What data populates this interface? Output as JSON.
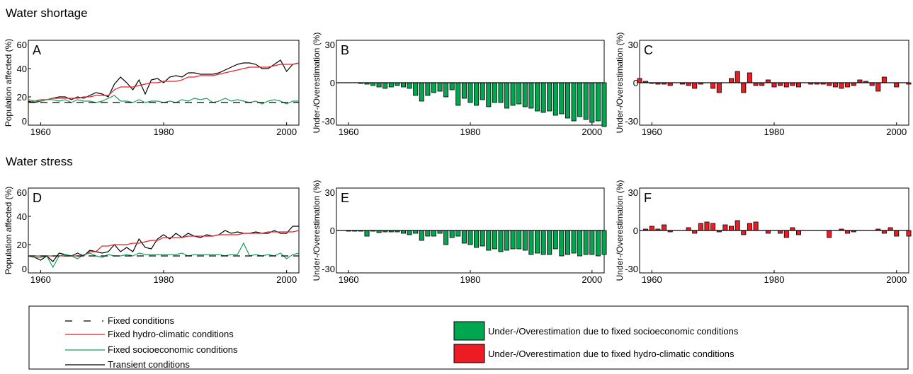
{
  "sections": [
    {
      "title": "Water shortage"
    },
    {
      "title": "Water stress"
    }
  ],
  "colors": {
    "fixed_conditions": "#000000",
    "fixed_hydro": "#e8202a",
    "fixed_socio": "#16a05a",
    "transient": "#000000",
    "bar_socio": "#00a650",
    "bar_hydro": "#ed1c24"
  },
  "legend": {
    "fixed_conditions": "Fixed conditions",
    "fixed_hydro": "Fixed hydro-climatic conditions",
    "fixed_socio": "Fixed socioeconomic conditions",
    "transient": "Transient conditions",
    "bar_socio": "Under-/Overestimation due to fixed socioeconomic conditions",
    "bar_hydro": "Under-/Overestimation due to fixed hydro-climatic conditions"
  },
  "chart_data": [
    {
      "type": "line",
      "panel": "A",
      "ylabel": "Population affected (%)",
      "xlim": [
        1958,
        2002
      ],
      "ylim": [
        0,
        60
      ],
      "xticks": [
        1960,
        1980,
        2000
      ],
      "yticks": [
        0,
        20,
        40,
        60
      ],
      "x": [
        1958,
        1959,
        1960,
        1961,
        1962,
        1963,
        1964,
        1965,
        1966,
        1967,
        1968,
        1969,
        1970,
        1971,
        1972,
        1973,
        1974,
        1975,
        1976,
        1977,
        1978,
        1979,
        1980,
        1981,
        1982,
        1983,
        1984,
        1985,
        1986,
        1987,
        1988,
        1989,
        1990,
        1991,
        1992,
        1993,
        1994,
        1995,
        1996,
        1997,
        1998,
        1999,
        2000,
        2001,
        2002
      ],
      "series": [
        {
          "name": "Transient conditions",
          "key": "transient",
          "dash": "",
          "values": [
            17,
            16,
            17,
            18,
            19,
            20,
            20,
            18,
            20,
            19,
            21,
            23,
            22,
            20,
            29,
            34,
            30,
            25,
            32,
            22,
            32,
            33,
            30,
            34,
            35,
            34,
            37,
            37,
            36,
            36,
            36,
            37,
            39,
            41,
            43,
            44,
            44,
            43,
            40,
            40,
            43,
            46,
            38,
            43,
            44
          ]
        },
        {
          "name": "Fixed hydro-climatic conditions",
          "key": "fixed_hydro",
          "dash": "",
          "values": [
            16,
            17,
            18,
            18,
            19,
            19,
            19,
            19,
            19,
            20,
            20,
            21,
            21,
            21,
            25,
            27,
            27,
            27,
            28,
            29,
            30,
            30,
            31,
            31,
            31,
            32,
            34,
            34,
            35,
            35,
            35,
            36,
            37,
            38,
            39,
            40,
            41,
            41,
            41,
            41,
            42,
            43,
            43,
            43,
            44
          ]
        },
        {
          "name": "Fixed socioeconomic conditions",
          "key": "fixed_socio",
          "dash": "",
          "values": [
            18,
            17,
            17,
            18,
            18,
            17,
            18,
            16,
            18,
            17,
            17,
            16,
            17,
            19,
            21,
            17,
            17,
            16,
            18,
            16,
            17,
            17,
            16,
            17,
            16,
            18,
            17,
            19,
            18,
            19,
            16,
            17,
            19,
            17,
            18,
            17,
            16,
            17,
            15,
            17,
            18,
            17,
            15,
            17,
            17
          ]
        },
        {
          "name": "Fixed conditions",
          "key": "fixed_conditions",
          "dash": "10,7",
          "values": [
            16,
            16,
            16,
            16,
            16,
            16,
            16,
            16,
            16,
            16,
            16,
            16,
            16,
            16,
            16,
            16,
            16,
            16,
            16,
            16,
            16,
            16,
            16,
            16,
            16,
            16,
            16,
            16,
            16,
            16,
            16,
            16,
            16,
            16,
            16,
            16,
            16,
            16,
            16,
            16,
            16,
            16,
            16,
            16,
            16
          ]
        }
      ]
    },
    {
      "type": "bar",
      "panel": "B",
      "color_key": "bar_socio",
      "ylabel": "Under-/Overestimation (%)",
      "xlim": [
        1958,
        2002
      ],
      "ylim": [
        -30,
        30
      ],
      "xticks": [
        1960,
        1980,
        2000
      ],
      "yticks": [
        -30,
        0,
        30
      ],
      "x": [
        1958,
        1959,
        1960,
        1961,
        1962,
        1963,
        1964,
        1965,
        1966,
        1967,
        1968,
        1969,
        1970,
        1971,
        1972,
        1973,
        1974,
        1975,
        1976,
        1977,
        1978,
        1979,
        1980,
        1981,
        1982,
        1983,
        1984,
        1985,
        1986,
        1987,
        1988,
        1989,
        1990,
        1991,
        1992,
        1993,
        1994,
        1995,
        1996,
        1997,
        1998,
        1999,
        2000,
        2001,
        2002
      ],
      "values": [
        0,
        0,
        0,
        0,
        -0.5,
        -1,
        -2,
        -3,
        -4,
        -3,
        -2,
        -3,
        -4,
        -9,
        -13,
        -9,
        -7,
        -6,
        -10,
        -5,
        -16,
        -11,
        -14,
        -16,
        -12,
        -17,
        -14,
        -14,
        -18,
        -16,
        -15,
        -17,
        -18,
        -20,
        -21,
        -20,
        -23,
        -22,
        -25,
        -27,
        -24,
        -26,
        -28,
        -27,
        -31
      ]
    },
    {
      "type": "bar",
      "panel": "C",
      "color_key": "bar_hydro",
      "ylabel": "Under-/Overestimation (%)",
      "xlim": [
        1958,
        2002
      ],
      "ylim": [
        -30,
        30
      ],
      "xticks": [
        1960,
        1980,
        2000
      ],
      "yticks": [
        -30,
        0,
        30
      ],
      "x": [
        1958,
        1959,
        1960,
        1961,
        1962,
        1963,
        1964,
        1965,
        1966,
        1967,
        1968,
        1969,
        1970,
        1971,
        1972,
        1973,
        1974,
        1975,
        1976,
        1977,
        1978,
        1979,
        1980,
        1981,
        1982,
        1983,
        1984,
        1985,
        1986,
        1987,
        1988,
        1989,
        1990,
        1991,
        1992,
        1993,
        1994,
        1995,
        1996,
        1997,
        1998,
        1999,
        2000,
        2001,
        2002
      ],
      "values": [
        3,
        1,
        -0.5,
        -1,
        -1,
        -2,
        0,
        -1,
        -2,
        -4,
        -1,
        0,
        -4,
        -7,
        0,
        3,
        8,
        -7,
        7,
        -2,
        -2,
        2,
        -3,
        -2,
        -3,
        -2,
        -3,
        0,
        -1,
        -1,
        -1,
        -2,
        -3,
        -4,
        -3,
        -2,
        2,
        1,
        -2,
        -6,
        4,
        0,
        -3,
        0,
        -1
      ]
    },
    {
      "type": "line",
      "panel": "D",
      "ylabel": "Population affected (%)",
      "xlim": [
        1958,
        2002
      ],
      "ylim": [
        0,
        60
      ],
      "xticks": [
        1960,
        1980,
        2000
      ],
      "yticks": [
        0,
        20,
        40,
        60
      ],
      "x": [
        1958,
        1959,
        1960,
        1961,
        1962,
        1963,
        1964,
        1965,
        1966,
        1967,
        1968,
        1969,
        1970,
        1971,
        1972,
        1973,
        1974,
        1975,
        1976,
        1977,
        1978,
        1979,
        1980,
        1981,
        1982,
        1983,
        1984,
        1985,
        1986,
        1987,
        1988,
        1989,
        1990,
        1991,
        1992,
        1993,
        1994,
        1995,
        1996,
        1997,
        1998,
        1999,
        2000,
        2001,
        2002
      ],
      "series": [
        {
          "name": "Transient conditions",
          "key": "transient",
          "dash": "",
          "values": [
            12,
            11,
            9,
            12,
            8,
            14,
            13,
            12,
            14,
            12,
            16,
            15,
            14,
            15,
            20,
            15,
            18,
            15,
            24,
            18,
            17,
            24,
            27,
            24,
            28,
            25,
            28,
            26,
            25,
            27,
            26,
            27,
            30,
            28,
            29,
            28,
            28,
            29,
            28,
            28,
            30,
            28,
            28,
            33,
            33
          ]
        },
        {
          "name": "Fixed hydro-climatic conditions",
          "key": "fixed_hydro",
          "dash": "",
          "values": [
            12,
            12,
            12,
            12,
            12,
            12,
            12,
            12,
            12,
            12,
            15,
            15,
            19,
            19,
            20,
            20,
            20,
            21,
            21,
            22,
            23,
            23,
            25,
            25,
            25,
            25,
            26,
            26,
            26,
            26,
            26,
            27,
            27,
            27,
            27,
            28,
            28,
            28,
            28,
            29,
            29,
            29,
            29,
            29,
            30
          ]
        },
        {
          "name": "Fixed socioeconomic conditions",
          "key": "fixed_socio",
          "dash": "",
          "values": [
            12,
            11,
            11,
            12,
            4,
            12,
            13,
            12,
            10,
            13,
            14,
            12,
            11,
            13,
            12,
            12,
            13,
            12,
            14,
            13,
            13,
            13,
            13,
            13,
            13,
            14,
            12,
            13,
            13,
            13,
            13,
            13,
            12,
            13,
            13,
            21,
            12,
            13,
            12,
            13,
            12,
            14,
            10,
            13,
            14
          ]
        },
        {
          "name": "Fixed conditions",
          "key": "fixed_conditions",
          "dash": "10,7",
          "values": [
            12,
            12,
            12,
            12,
            12,
            12,
            12,
            12,
            12,
            12,
            12,
            12,
            12,
            12,
            12,
            12,
            12,
            12,
            12,
            12,
            12,
            12,
            12,
            12,
            12,
            12,
            12,
            12,
            12,
            12,
            12,
            12,
            12,
            12,
            12,
            12,
            12,
            12,
            12,
            12,
            12,
            12,
            12,
            12,
            12
          ]
        }
      ]
    },
    {
      "type": "bar",
      "panel": "E",
      "color_key": "bar_socio",
      "ylabel": "Under-/Overestimation (%)",
      "xlim": [
        1958,
        2002
      ],
      "ylim": [
        -30,
        30
      ],
      "xticks": [
        1960,
        1980,
        2000
      ],
      "yticks": [
        -30,
        0,
        30
      ],
      "x": [
        1958,
        1959,
        1960,
        1961,
        1962,
        1963,
        1964,
        1965,
        1966,
        1967,
        1968,
        1969,
        1970,
        1971,
        1972,
        1973,
        1974,
        1975,
        1976,
        1977,
        1978,
        1979,
        1980,
        1981,
        1982,
        1983,
        1984,
        1985,
        1986,
        1987,
        1988,
        1989,
        1990,
        1991,
        1992,
        1993,
        1994,
        1995,
        1996,
        1997,
        1998,
        1999,
        2000,
        2001,
        2002
      ],
      "values": [
        0,
        0,
        -0.5,
        -0.5,
        -0.5,
        -4,
        -0.5,
        -1.5,
        -1,
        -1,
        -1,
        -2,
        -3,
        -2,
        -7,
        -4,
        -4,
        -2,
        -10,
        -5,
        -4,
        -9,
        -10,
        -12,
        -11,
        -14,
        -13,
        -15,
        -14,
        -13,
        -13,
        -14,
        -17,
        -16,
        -17,
        -17,
        -13,
        -18,
        -17,
        -16,
        -18,
        -17,
        -17,
        -18,
        -17
      ]
    },
    {
      "type": "bar",
      "panel": "F",
      "color_key": "bar_hydro",
      "ylabel": "Under-/Overestimation (%)",
      "xlim": [
        1958,
        2002
      ],
      "ylim": [
        -30,
        30
      ],
      "xticks": [
        1960,
        1980,
        2000
      ],
      "yticks": [
        -30,
        0,
        30
      ],
      "x": [
        1958,
        1959,
        1960,
        1961,
        1962,
        1963,
        1964,
        1965,
        1966,
        1967,
        1968,
        1969,
        1970,
        1971,
        1972,
        1973,
        1974,
        1975,
        1976,
        1977,
        1978,
        1979,
        1980,
        1981,
        1982,
        1983,
        1984,
        1985,
        1986,
        1987,
        1988,
        1989,
        1990,
        1991,
        1992,
        1993,
        1994,
        1995,
        1996,
        1997,
        1998,
        1999,
        2000,
        2001,
        2002
      ],
      "values": [
        0,
        1,
        3,
        1,
        4,
        -1,
        0,
        0,
        2,
        -2,
        5,
        6,
        5,
        -1,
        4,
        3,
        7,
        -3,
        5,
        6,
        0,
        -2,
        0,
        -2,
        -5,
        2,
        -3,
        0,
        0,
        0,
        0,
        -5,
        0,
        1,
        -2,
        -1,
        0,
        0,
        0,
        1,
        -2,
        2,
        -4,
        0,
        -4
      ]
    }
  ]
}
